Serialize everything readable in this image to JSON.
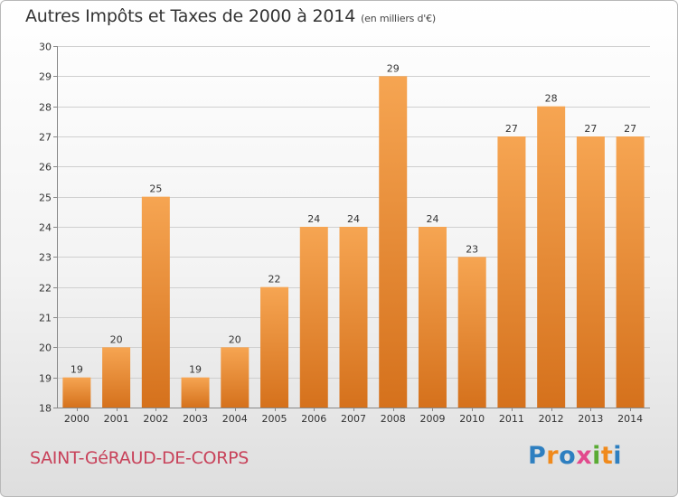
{
  "title": "Autres Impôts et Taxes de 2000 à 2014",
  "subtitle": "(en milliers d'€)",
  "place": "SAINT-GéRAUD-DE-CORPS",
  "logo": {
    "letters": [
      "P",
      "r",
      "o",
      "x",
      "i",
      "t",
      "i"
    ],
    "colors": [
      "#2e7fc0",
      "#f08a1c",
      "#2e7fc0",
      "#e24a8d",
      "#5aab34",
      "#f08a1c",
      "#2e7fc0"
    ]
  },
  "colors": {
    "bar_light": "#f6a552",
    "bar_dark": "#d5711c",
    "grid": "#cfcfcf",
    "axis": "#888888",
    "label": "#333333"
  },
  "chart_data": {
    "type": "bar",
    "title": "Autres Impôts et Taxes de 2000 à 2014",
    "subtitle": "(en milliers d'€)",
    "categories": [
      "2000",
      "2001",
      "2002",
      "2003",
      "2004",
      "2005",
      "2006",
      "2007",
      "2008",
      "2009",
      "2010",
      "2011",
      "2012",
      "2013",
      "2014"
    ],
    "values": [
      19,
      20,
      25,
      19,
      20,
      22,
      24,
      24,
      29,
      24,
      23,
      27,
      28,
      27,
      27
    ],
    "ylim": [
      18,
      30
    ],
    "yticks": [
      18,
      19,
      20,
      21,
      22,
      23,
      24,
      25,
      26,
      27,
      28,
      29,
      30
    ],
    "grid": true,
    "legend": "none",
    "xlabel": "",
    "ylabel": ""
  }
}
